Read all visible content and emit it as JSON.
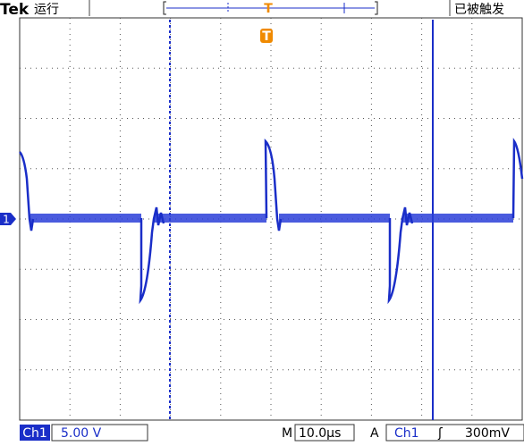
{
  "header": {
    "brand": "Tek",
    "state": "运行",
    "trigger_status": "已被触发",
    "trigger_marker": "T"
  },
  "screen": {
    "trigger_marker": "T",
    "channel_marker": "1"
  },
  "footer": {
    "channel": "Ch1",
    "volts_per_div": "5.00 V",
    "time_label": "M",
    "time_per_div": "10.0µs",
    "trigger_mode": "A",
    "trigger_source": "Ch1",
    "trigger_slope": "ʃ",
    "trigger_level": "300mV"
  }
}
